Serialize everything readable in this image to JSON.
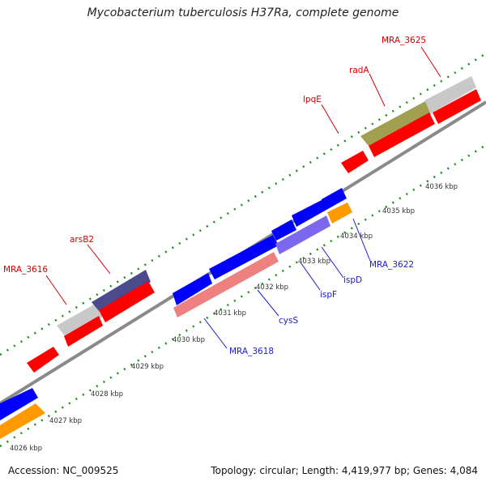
{
  "title": "Mycobacterium tuberculosis H37Ra, complete genome",
  "footer": {
    "accession": "Accession: NC_009525",
    "summary": "Topology: circular; Length: 4,419,977 bp; Genes: 4,084"
  },
  "colors": {
    "backbone": "#8a8a8a",
    "ticks": "#1a8c1a",
    "forward_label": "#d40000",
    "reverse_label": "#1c1cc8"
  },
  "scale_labels": [
    "4026 kbp",
    "4027 kbp",
    "4028 kbp",
    "4029 kbp",
    "4030 kbp",
    "4031 kbp",
    "4032 kbp",
    "4033 kbp",
    "4034 kbp",
    "4035 kbp",
    "4036 kbp"
  ],
  "features": {
    "forward": [
      {
        "name": "MRA_3616",
        "color": "#c8c8c8"
      },
      {
        "name": "arsB2",
        "color": "#4a4a8c"
      },
      {
        "name": "lpqE",
        "color": "#ff0000"
      },
      {
        "name": "radA",
        "color": "#a0a050"
      },
      {
        "name": "MRA_3625",
        "color": "#c8c8c8"
      }
    ],
    "reverse": [
      {
        "name": "MRA_3618",
        "color": "#0000ff"
      },
      {
        "name": "cysS",
        "color": "#ee8080"
      },
      {
        "name": "ispF",
        "color": "#7b68ee"
      },
      {
        "name": "ispD",
        "color": "#0000ff"
      },
      {
        "name": "MRA_3622",
        "color": "#ff9900"
      }
    ]
  }
}
